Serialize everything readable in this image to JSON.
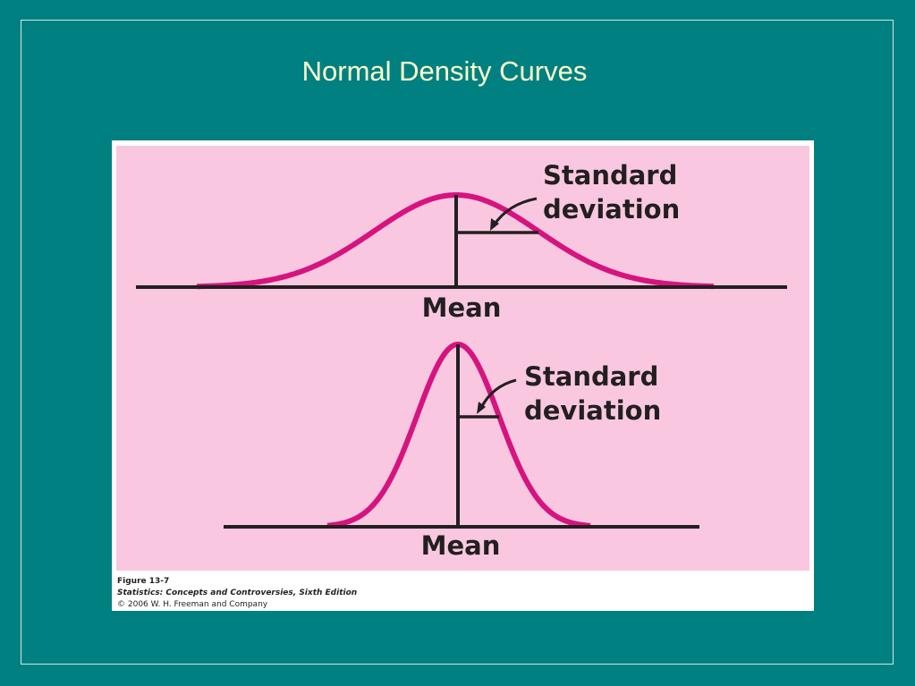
{
  "header": {
    "title": "Normal Density Curves"
  },
  "figure": {
    "panels": [
      {
        "label_lines": [
          "Standard",
          "deviation"
        ],
        "axis_label": "Mean"
      },
      {
        "label_lines": [
          "Standard",
          "deviation"
        ],
        "axis_label": "Mean"
      }
    ],
    "caption": {
      "figure": "Figure 13-7",
      "book": "Statistics: Concepts and Controversies, Sixth Edition",
      "copyright": "© 2006 W. H. Freeman and Company"
    }
  }
}
